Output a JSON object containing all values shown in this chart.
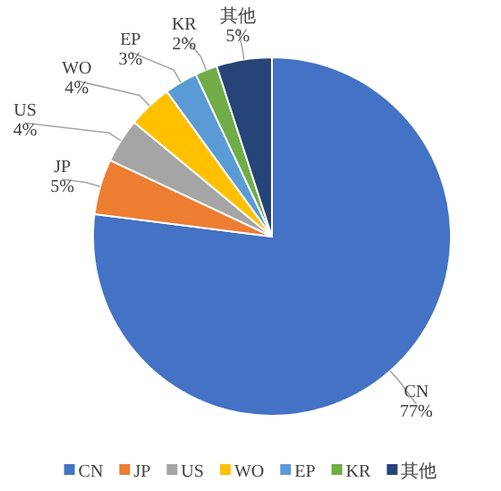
{
  "chart_data": {
    "type": "pie",
    "categories": [
      "CN",
      "JP",
      "US",
      "WO",
      "EP",
      "KR",
      "其他"
    ],
    "values": [
      77,
      5,
      4,
      4,
      3,
      2,
      5
    ],
    "colors": [
      "#4472c4",
      "#ed7d31",
      "#a5a5a5",
      "#ffc000",
      "#5b9bd5",
      "#70ad47",
      "#264478"
    ],
    "value_labels": [
      "77%",
      "5%",
      "4%",
      "4%",
      "3%",
      "2%",
      "5%"
    ],
    "legend": "bottom"
  }
}
